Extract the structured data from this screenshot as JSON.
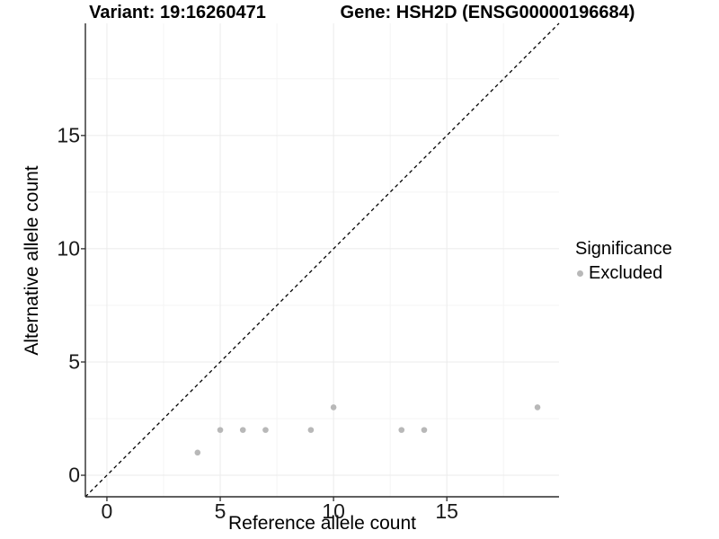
{
  "figure": {
    "title_left": "Variant: 19:16260471",
    "title_right": "Gene: HSH2D (ENSG00000196684)",
    "xlabel": "Reference allele count",
    "ylabel": "Alternative allele count"
  },
  "legend": {
    "title": "Significance",
    "items": [
      {
        "label": "Excluded",
        "marker": "circle",
        "color": "#b8b8b8"
      }
    ]
  },
  "colors": {
    "point": "#b8b8b8",
    "grid_major": "#ebebeb",
    "grid_minor": "#f4f4f4",
    "axis_line": "#2b2b2b",
    "identity_line": "#000000",
    "tick_text": "#1a1a1a"
  },
  "chart_data": {
    "type": "scatter",
    "title": "Variant: 19:16260471 | Gene: HSH2D (ENSG00000196684)",
    "xlabel": "Reference allele count",
    "ylabel": "Alternative allele count",
    "series": [
      {
        "name": "Excluded",
        "points": [
          [
            4,
            1
          ],
          [
            5,
            2
          ],
          [
            6,
            2
          ],
          [
            7,
            2
          ],
          [
            9,
            2
          ],
          [
            10,
            3
          ],
          [
            13,
            2
          ],
          [
            14,
            2
          ],
          [
            19,
            3
          ]
        ]
      }
    ],
    "x_ticks": [
      0,
      5,
      10,
      15
    ],
    "y_ticks": [
      0,
      5,
      10,
      15
    ],
    "minor_ticks": [
      2.5,
      7.5,
      12.5,
      17.5
    ],
    "xlim": [
      -0.95,
      19.95
    ],
    "ylim": [
      -0.95,
      19.95
    ],
    "identity_line": {
      "slope": 1,
      "intercept": 0,
      "style": "dashed"
    },
    "grid": "major+minor",
    "legend_position": "right",
    "legend_title": "Significance"
  }
}
